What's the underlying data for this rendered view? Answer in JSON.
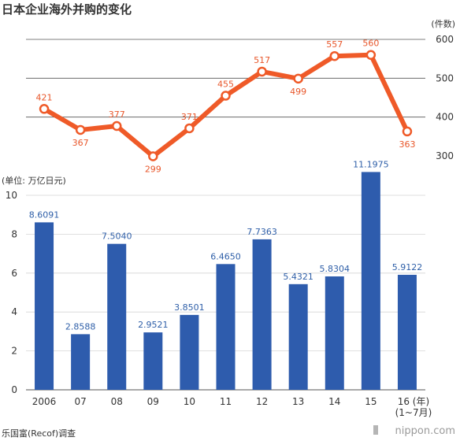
{
  "title": "日本企业海外并购的变化",
  "source": "乐国富(Recof)调查",
  "brand": "nippon.com",
  "colors": {
    "line": "#ef5a28",
    "bar": "#2e5cad",
    "lineLabel": "#e8562a",
    "barLabel": "#2f5fa8"
  },
  "chart_data": [
    {
      "type": "line",
      "unit_label": "(件数)",
      "categories": [
        "2006",
        "07",
        "08",
        "09",
        "10",
        "11",
        "12",
        "13",
        "14",
        "15",
        "16"
      ],
      "values": [
        421,
        367,
        377,
        299,
        371,
        455,
        517,
        499,
        557,
        560,
        363
      ],
      "yticks": [
        300,
        400,
        500,
        600
      ],
      "ylim": [
        300,
        600
      ],
      "grid": true
    },
    {
      "type": "bar",
      "unit_label": "(单位: 万亿日元)",
      "categories": [
        "2006",
        "07",
        "08",
        "09",
        "10",
        "11",
        "12",
        "13",
        "14",
        "15",
        "16"
      ],
      "x_tick_suffix": "(年)",
      "last_tick_note": "(1~7月)",
      "values": [
        8.6091,
        2.8588,
        7.504,
        2.9521,
        3.8501,
        6.465,
        7.7363,
        5.4321,
        5.8304,
        11.1975,
        5.9122
      ],
      "value_labels": [
        "8.6091",
        "2.8588",
        "7.5040",
        "2.9521",
        "3.8501",
        "6.4650",
        "7.7363",
        "5.4321",
        "5.8304",
        "11.1975",
        "5.9122"
      ],
      "yticks": [
        0,
        2,
        4,
        6,
        8,
        10
      ],
      "ylim": [
        0,
        11.2
      ],
      "grid": true
    }
  ]
}
